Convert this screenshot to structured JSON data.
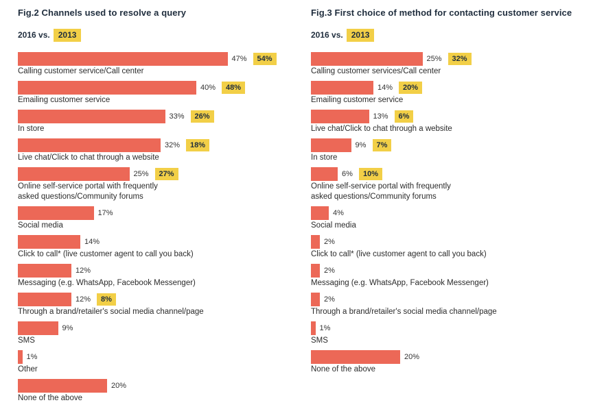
{
  "chart_data": [
    {
      "type": "bar",
      "orientation": "horizontal",
      "title": "Fig.2 Channels used to resolve a query",
      "comparison": {
        "current_label": "2016 vs.",
        "previous_label": "2013"
      },
      "xlim": [
        0,
        54
      ],
      "categories": [
        "Calling customer service/Call center",
        "Emailing customer service",
        "In store",
        "Live chat/Click to chat through a website",
        "Online self-service portal with frequently\nasked questions/Community forums",
        "Social media",
        "Click to call* (live customer agent to call you back)",
        "Messaging (e.g. WhatsApp, Facebook Messenger)",
        "Through a brand/retailer's social media channel/page",
        "SMS",
        "Other",
        "None of the above"
      ],
      "series": [
        {
          "name": "2016",
          "values": [
            47,
            40,
            33,
            32,
            25,
            17,
            14,
            12,
            12,
            9,
            1,
            20
          ]
        },
        {
          "name": "2013",
          "values": [
            54,
            48,
            26,
            18,
            27,
            null,
            null,
            null,
            8,
            null,
            null,
            null
          ]
        }
      ]
    },
    {
      "type": "bar",
      "orientation": "horizontal",
      "title": "Fig.3 First choice of method for contacting customer service",
      "comparison": {
        "current_label": "2016 vs.",
        "previous_label": "2013"
      },
      "xlim": [
        0,
        54
      ],
      "categories": [
        "Calling customer services/Call center",
        "Emailing customer service",
        "Live chat/Click to chat through a website",
        "In store",
        "Online self-service portal with frequently\nasked questions/Community forums",
        "Social media",
        "Click to call* (live customer agent to call you back)",
        "Messaging (e.g. WhatsApp, Facebook Messenger)",
        "Through a brand/retailer's social media channel/page",
        "SMS",
        "None of the above"
      ],
      "series": [
        {
          "name": "2016",
          "values": [
            25,
            14,
            13,
            9,
            6,
            4,
            2,
            2,
            2,
            1,
            20
          ]
        },
        {
          "name": "2013",
          "values": [
            32,
            20,
            6,
            7,
            10,
            null,
            null,
            null,
            null,
            null,
            null
          ]
        }
      ]
    }
  ],
  "colors": {
    "bar_2016": "#ec6857",
    "badge_2013": "#f2cf47",
    "title_text": "#1f2d3d"
  },
  "value_suffix": "%"
}
